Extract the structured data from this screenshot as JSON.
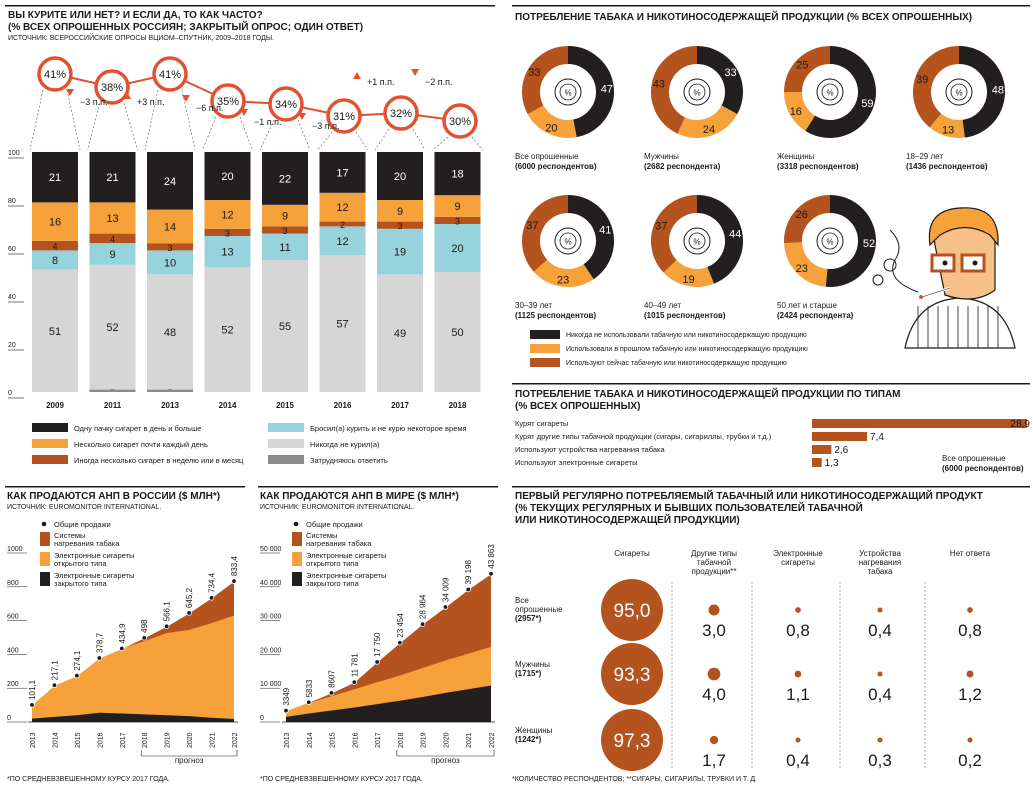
{
  "colors": {
    "black": "#231f20",
    "orange": "#f7a13a",
    "brown": "#b5531f",
    "lightblue": "#97d3dc",
    "lightgray": "#d6d6d6",
    "darkgray": "#8a8a8a",
    "red": "#e2502e"
  },
  "smoking_chart": {
    "title1": "ВЫ КУРИТЕ ИЛИ НЕТ? И ЕСЛИ ДА, ТО КАК ЧАСТО?",
    "title2": "(% ВСЕХ ОПРОШЕННЫХ РОССИЯН; ЗАКРЫТЫЙ ОПРОС; ОДИН ОТВЕТ)",
    "source": "ИСТОЧНИК: ВСЕРОССИЙСКИЕ ОПРОСЫ ВЦИОМ–СПУТНИК, 2009–2018 ГОДЫ.",
    "yticks": [
      "0",
      "20",
      "40",
      "60",
      "80",
      "100"
    ],
    "legend": [
      {
        "label": "Одну пачку сигарет в день и больше",
        "color": "black"
      },
      {
        "label": "Несколько сигарет почти каждый день",
        "color": "orange"
      },
      {
        "label": "Иногда несколько сигарет в неделю или в месяц",
        "color": "brown"
      },
      {
        "label": "Бросил(а) курить и не курю некоторое время",
        "color": "lightblue"
      },
      {
        "label": "Никогда не курил(а)",
        "color": "lightgray"
      },
      {
        "label": "Затрудняюсь ответить",
        "color": "darkgray"
      }
    ]
  },
  "chart_data": [
    {
      "type": "bar",
      "stacked": true,
      "title": "ВЫ КУРИТЕ ИЛИ НЕТ? И ЕСЛИ ДА, ТО КАК ЧАСТО?",
      "categories": [
        "2009",
        "2011",
        "2013",
        "2014",
        "2015",
        "2016",
        "2017",
        "2018"
      ],
      "ylim": [
        0,
        100
      ],
      "series": [
        {
          "name": "Затрудняюсь ответить",
          "values": [
            0,
            1,
            1,
            0,
            0,
            0,
            0,
            0
          ]
        },
        {
          "name": "Никогда не курил(а)",
          "values": [
            51,
            52,
            48,
            52,
            55,
            57,
            49,
            50
          ]
        },
        {
          "name": "Бросил(а) курить и не курю некоторое время",
          "values": [
            8,
            9,
            10,
            13,
            11,
            12,
            19,
            20
          ]
        },
        {
          "name": "Иногда несколько сигарет в неделю или в месяц",
          "values": [
            4,
            4,
            3,
            3,
            3,
            2,
            3,
            3
          ]
        },
        {
          "name": "Несколько сигарет почти каждый день",
          "values": [
            16,
            13,
            14,
            12,
            9,
            12,
            9,
            9
          ]
        },
        {
          "name": "Одну пачку сигарет в день и больше",
          "values": [
            21,
            21,
            24,
            20,
            22,
            17,
            20,
            18
          ]
        }
      ],
      "smokers_total": [
        "41%",
        "38%",
        "41%",
        "35%",
        "34%",
        "31%",
        "32%",
        "30%"
      ],
      "changes": [
        "−3 п.п.",
        "+3 п.п.",
        "−6 п.п.",
        "−1 п.п.",
        "−3 п.п.",
        "+1 п.п.",
        "−2 п.п."
      ],
      "change_dirs": [
        "down",
        "up",
        "down",
        "down",
        "down",
        "up",
        "down"
      ]
    },
    {
      "type": "pie",
      "title": "ПОТРЕБЛЕНИЕ ТАБАКА И НИКОТИНОСОДЕРЖАЩЕЙ ПРОДУКЦИИ (% ВСЕХ ОПРОШЕННЫХ)",
      "center_label": "%",
      "groups": [
        {
          "name": "Все опрошенные",
          "sub": "(6000 респондентов)",
          "values": [
            47,
            20,
            33
          ]
        },
        {
          "name": "Мужчины",
          "sub": "(2682 респондента)",
          "values": [
            33,
            24,
            43
          ]
        },
        {
          "name": "Женщины",
          "sub": "(3318 респондентов)",
          "values": [
            59,
            16,
            25
          ]
        },
        {
          "name": "18–29 лет",
          "sub": "(1436 респондентов)",
          "values": [
            48,
            13,
            39
          ]
        },
        {
          "name": "30–39 лет",
          "sub": "(1125 респондентов)",
          "values": [
            41,
            23,
            37
          ]
        },
        {
          "name": "40–49 лет",
          "sub": "(1015 респондентов)",
          "values": [
            44,
            19,
            37
          ]
        },
        {
          "name": "50 лет и старше",
          "sub": "(2424 респондента)",
          "values": [
            52,
            23,
            26
          ]
        }
      ],
      "series_names": [
        "Никогда не использовали табачную или никотиносодержащую продукцию",
        "Использовали в прошлом табачную или никотиносодержащую продукцию",
        "Используют сейчас табачную или никотиносодержащую продукцию"
      ]
    },
    {
      "type": "bar",
      "orientation": "horizontal",
      "title": "ПОТРЕБЛЕНИЕ ТАБАКА И НИКОТИНОСОДЕРЖАЩЕЙ ПРОДУКЦИИ ПО ТИПАМ",
      "subtitle": "(% ВСЕХ ОПРОШЕННЫХ)",
      "categories": [
        "Курят сигареты",
        "Курят другие типы табачной продукции (сигары, сигариллы, трубки и т.д.)",
        "Используют устройства нагревания табака",
        "Используют электронные сигареты"
      ],
      "values": [
        28.9,
        7.4,
        2.6,
        1.3
      ],
      "labels": [
        "28,9",
        "7,4",
        "2,6",
        "1,3"
      ],
      "note1": "Все опрошенные",
      "note2": "(6000 респондентов)"
    },
    {
      "type": "area",
      "title": "КАК ПРОДАЮТСЯ АНП В РОССИИ ($ МЛН*)",
      "source": "ИСТОЧНИК: EUROMONITOR INTERNATIONAL.",
      "x": [
        "2013",
        "2014",
        "2015",
        "2016",
        "2017",
        "2018",
        "2019",
        "2020",
        "2021",
        "2022"
      ],
      "ylim": [
        0,
        1000
      ],
      "yticks": [
        "0",
        "200",
        "400",
        "600",
        "800",
        "1000"
      ],
      "total": [
        101.1,
        217.1,
        274.1,
        378.7,
        434.9,
        498,
        566.1,
        645.2,
        734.4,
        833.4
      ],
      "total_labels": [
        "101,1",
        "217,1",
        "274,1",
        "378,7",
        "434,9",
        "498",
        "566,1",
        "645,2",
        "734,4",
        "833,4"
      ],
      "closed_ecig": [
        20,
        30,
        40,
        55,
        50,
        45,
        40,
        35,
        25,
        18
      ],
      "open_ecig": [
        81,
        187,
        234,
        324,
        385,
        433,
        486,
        510,
        560,
        612
      ],
      "forecast_label": "прогноз",
      "footnote": "*ПО СРЕДНЕВЗВЕШЕННОМУ КУРСУ 2017 ГОДА."
    },
    {
      "type": "area",
      "title": "КАК ПРОДАЮТСЯ АНП В МИРЕ ($ МЛН*)",
      "source": "ИСТОЧНИК: EUROMONITOR INTERNATIONAL.",
      "x": [
        "2013",
        "2014",
        "2015",
        "2016",
        "2017",
        "2018",
        "2019",
        "2020",
        "2021",
        "2022"
      ],
      "ylim": [
        0,
        50000
      ],
      "yticks": [
        "0",
        "10 000",
        "20 000",
        "30 000",
        "40 000",
        "50 000"
      ],
      "total": [
        3349,
        5833,
        8607,
        11781,
        17750,
        23454,
        28964,
        34009,
        39198,
        43863
      ],
      "total_labels": [
        "3349",
        "5833",
        "8607",
        "11 781",
        "17 750",
        "23 454",
        "28 964",
        "34 009",
        "39 198",
        "43 863"
      ],
      "closed_ecig": [
        1500,
        2500,
        3400,
        4300,
        5300,
        6300,
        7400,
        8600,
        9700,
        10800
      ],
      "open_ecig": [
        1849,
        3133,
        4207,
        5381,
        6450,
        7454,
        8564,
        9609,
        10498,
        11463
      ],
      "forecast_label": "прогноз",
      "footnote": "*ПО СРЕДНЕВЗВЕШЕННОМУ КУРСУ 2017 ГОДА."
    },
    {
      "type": "table",
      "title1": "ПЕРВЫЙ РЕГУЛЯРНО ПОТРЕБЛЯЕМЫЙ ТАБАЧНЫЙ ИЛИ НИКОТИНОСОДЕРЖАЩИЙ ПРОДУКТ",
      "title2": "(% ТЕКУЩИХ РЕГУЛЯРНЫХ И БЫВШИХ ПОЛЬЗОВАТЕЛЕЙ ТАБАЧНОЙ",
      "title3": "ИЛИ НИКОТИНОСОДЕРЖАЩЕЙ ПРОДУКЦИИ)",
      "columns": [
        "Сигареты",
        "Другие типы табачной продукции**",
        "Электронные сигареты",
        "Устройства нагревания табака",
        "Нет ответа"
      ],
      "rows": [
        {
          "name": "Все опрошенные",
          "sub": "(2957*)",
          "values": [
            95.0,
            3.0,
            0.8,
            0.4,
            0.8
          ],
          "labels": [
            "95,0",
            "3,0",
            "0,8",
            "0,4",
            "0,8"
          ]
        },
        {
          "name": "Мужчины",
          "sub": "(1715*)",
          "values": [
            93.3,
            4.0,
            1.1,
            0.4,
            1.2
          ],
          "labels": [
            "93,3",
            "4,0",
            "1,1",
            "0,4",
            "1,2"
          ]
        },
        {
          "name": "Женщины",
          "sub": "(1242*)",
          "values": [
            97.3,
            1.7,
            0.4,
            0.3,
            0.2
          ],
          "labels": [
            "97,3",
            "1,7",
            "0,4",
            "0,3",
            "0,2"
          ]
        }
      ],
      "footnote": "*КОЛИЧЕСТВО РЕСПОНДЕНТОВ; **СИГАРЫ, СИГАРИЛЫ, ТРУБКИ И Т. Д."
    }
  ],
  "donut_legend": [
    {
      "label": "Никогда не использовали табачную или никотиносодержащую продукцию",
      "color": "black"
    },
    {
      "label": "Использовали в прошлом табачную или никотиносодержащую продукцию",
      "color": "orange"
    },
    {
      "label": "Используют сейчас табачную или никотиносодержащую продукцию",
      "color": "brown"
    }
  ],
  "area_legend": [
    {
      "label": "Общие продажи",
      "kind": "dot"
    },
    {
      "label1": "Системы",
      "label2": "нагревания табака",
      "color": "brown"
    },
    {
      "label1": "Электронные сигареты",
      "label2": "открытого типа",
      "color": "orange"
    },
    {
      "label1": "Электронные сигареты",
      "label2": "закрытого типа",
      "color": "black"
    }
  ]
}
